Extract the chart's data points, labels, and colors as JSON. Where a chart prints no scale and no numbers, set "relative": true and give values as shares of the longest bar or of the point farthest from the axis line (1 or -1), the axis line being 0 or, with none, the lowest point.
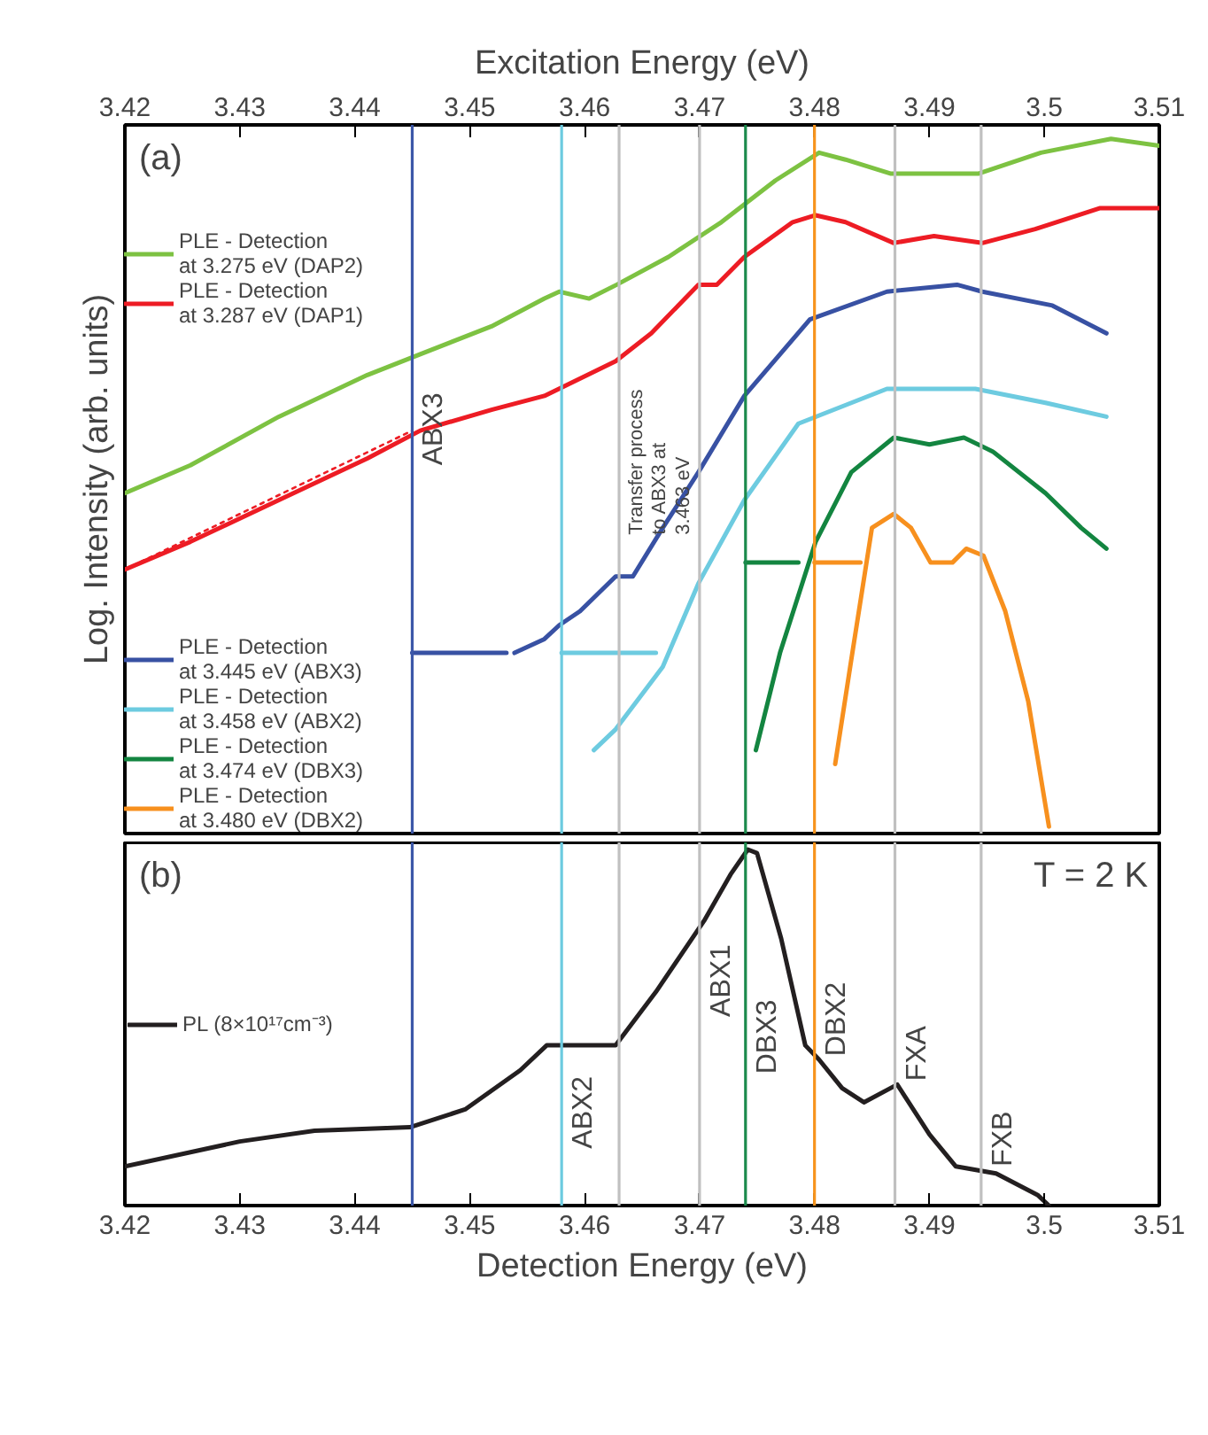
{
  "chart_data": [
    {
      "type": "line",
      "relative": true,
      "xlim": [
        3.42,
        3.51
      ],
      "x2lim": [
        3.42,
        3.51
      ],
      "x2ticks": [
        3.42,
        3.43,
        3.44,
        3.45,
        3.46,
        3.47,
        3.48,
        3.49,
        3.5,
        3.51
      ],
      "x2label": "Excitation Energy (eV)",
      "ylabel": "Log. Intensity (arb. units)",
      "tick_labels": false,
      "legend": "left",
      "line_style": "solid",
      "series": [
        {
          "name": "PLE - Detection\nat 3.275 eV (DAP2)",
          "color": "#7dc242",
          "x": [
            3.42,
            3.4257,
            3.4334,
            3.4411,
            3.4457,
            3.4519,
            3.4565,
            3.4578,
            3.4604,
            3.4628,
            3.4673,
            3.4719,
            3.4766,
            3.4804,
            3.4827,
            3.4866,
            3.4904,
            3.4943,
            3.4997,
            3.5058,
            3.51
          ],
          "values": [
            0.49,
            0.53,
            0.6,
            0.66,
            0.69,
            0.73,
            0.77,
            0.78,
            0.77,
            0.79,
            0.83,
            0.88,
            0.94,
            0.98,
            0.97,
            0.95,
            0.95,
            0.95,
            0.98,
            1.0,
            0.99
          ]
        },
        {
          "name": "PLE - Detection\nat 3.287 eV (DAP1)",
          "color": "#ed1c24",
          "x": [
            3.42,
            3.4257,
            3.4334,
            3.4411,
            3.4457,
            3.4519,
            3.4565,
            3.4627,
            3.4658,
            3.4699,
            3.4715,
            3.4739,
            3.4781,
            3.4801,
            3.4827,
            3.4869,
            3.4904,
            3.4946,
            3.4992,
            3.5048,
            3.51
          ],
          "values": [
            0.38,
            0.42,
            0.48,
            0.54,
            0.58,
            0.61,
            0.63,
            0.68,
            0.72,
            0.79,
            0.79,
            0.83,
            0.88,
            0.89,
            0.88,
            0.85,
            0.86,
            0.85,
            0.87,
            0.9,
            0.9
          ]
        },
        {
          "color": "#ed1c24",
          "line_style": "dotted",
          "x": [
            3.42,
            3.445
          ],
          "values": [
            0.38,
            0.58
          ]
        },
        {
          "name": "PLE - Detection\nat 3.445 eV (ABX3)",
          "color": "#3851a3",
          "x": [
            3.4539,
            3.4565,
            3.4578,
            3.4596,
            3.4627,
            3.4642,
            3.4668,
            3.4699,
            3.4739,
            3.4796,
            3.4863,
            3.4924,
            3.4946,
            3.5007,
            3.5054
          ],
          "values": [
            0.26,
            0.28,
            0.3,
            0.32,
            0.37,
            0.37,
            0.44,
            0.52,
            0.63,
            0.74,
            0.78,
            0.79,
            0.78,
            0.76,
            0.72
          ]
        },
        {
          "name": "PLE - Detection\nat 3.458 eV (ABX2)",
          "color": "#6dcbe0",
          "x": [
            3.4608,
            3.4627,
            3.4668,
            3.4699,
            3.4739,
            3.4786,
            3.4863,
            3.494,
            3.5001,
            3.5054
          ],
          "values": [
            0.12,
            0.15,
            0.24,
            0.36,
            0.48,
            0.59,
            0.64,
            0.64,
            0.62,
            0.6
          ]
        },
        {
          "name": "PLE - Detection\nat 3.474 eV (DBX3)",
          "color": "#138540",
          "x": [
            3.4749,
            3.477,
            3.4801,
            3.4832,
            3.4869,
            3.49,
            3.493,
            3.4955,
            3.5001,
            3.5032,
            3.5054
          ],
          "values": [
            0.12,
            0.26,
            0.42,
            0.52,
            0.57,
            0.56,
            0.57,
            0.55,
            0.49,
            0.44,
            0.41
          ]
        },
        {
          "name": "PLE - Detection\nat 3.480 eV (DBX2)",
          "color": "#f7901e",
          "x": [
            3.4818,
            3.4832,
            3.485,
            3.4869,
            3.4884,
            3.4901,
            3.492,
            3.4932,
            3.4947,
            3.4966,
            3.4986,
            3.5004
          ],
          "values": [
            0.1,
            0.25,
            0.44,
            0.46,
            0.44,
            0.39,
            0.39,
            0.41,
            0.4,
            0.32,
            0.19,
            0.01
          ]
        },
        {
          "color": "#3851a3",
          "x": [
            3.445,
            3.4532
          ],
          "values": [
            0.26,
            0.26
          ]
        },
        {
          "color": "#6dcbe0",
          "x": [
            3.458,
            3.4662
          ],
          "values": [
            0.26,
            0.26
          ]
        },
        {
          "color": "#138540",
          "x": [
            3.474,
            3.4786
          ],
          "values": [
            0.39,
            0.39
          ]
        },
        {
          "color": "#f7901e",
          "x": [
            3.48,
            3.484
          ],
          "values": [
            0.39,
            0.39
          ]
        }
      ],
      "ref_lines": [
        {
          "axis": "x",
          "value": 3.445,
          "color": "#3c57a8"
        },
        {
          "axis": "x",
          "value": 3.458,
          "color": "#6ccbe0"
        },
        {
          "axis": "x",
          "value": 3.463,
          "color": "#c0c0c0"
        },
        {
          "axis": "x",
          "value": 3.47,
          "color": "#c0c0c0"
        },
        {
          "axis": "x",
          "value": 3.474,
          "color": "#1b8a4c"
        },
        {
          "axis": "x",
          "value": 3.48,
          "color": "#f7941d"
        },
        {
          "axis": "x",
          "value": 3.487,
          "color": "#c0c0c0"
        },
        {
          "axis": "x",
          "value": 3.4945,
          "color": "#c0c0c0"
        }
      ],
      "annotations": [
        "(a)",
        {
          "text": "ABX3",
          "x": 3.445,
          "y": 0.53
        },
        {
          "text": "Transfer process\nto ABX3 at\n3.463 eV",
          "x": 3.463,
          "y": 0.43
        }
      ]
    },
    {
      "type": "line",
      "relative": true,
      "xlim": [
        3.42,
        3.51
      ],
      "xticks": [
        3.42,
        3.43,
        3.44,
        3.45,
        3.46,
        3.47,
        3.48,
        3.49,
        3.5,
        3.51
      ],
      "xlabel": "Detection Energy (eV)",
      "tick_labels": "x",
      "legend": "left",
      "line_style": "solid",
      "series": [
        {
          "name": "PL (8×10¹⁷cm⁻³)",
          "color": "#231f20",
          "x": [
            3.42,
            3.43,
            3.4365,
            3.4448,
            3.4496,
            3.4544,
            3.4567,
            3.4602,
            3.4627,
            3.4662,
            3.4704,
            3.4727,
            3.4742,
            3.475,
            3.4771,
            3.4792,
            3.4804,
            3.4824,
            3.4843,
            3.4872,
            3.49,
            3.4923,
            3.4958,
            3.4994,
            3.5004
          ],
          "values": [
            0.11,
            0.18,
            0.21,
            0.22,
            0.27,
            0.38,
            0.45,
            0.45,
            0.45,
            0.6,
            0.8,
            0.93,
            1.0,
            0.99,
            0.75,
            0.45,
            0.41,
            0.33,
            0.29,
            0.34,
            0.2,
            0.11,
            0.09,
            0.03,
            0.0
          ]
        }
      ],
      "ref_lines": [
        {
          "axis": "x",
          "value": 3.445,
          "color": "#3c57a8"
        },
        {
          "axis": "x",
          "value": 3.458,
          "color": "#6ccbe0"
        },
        {
          "axis": "x",
          "value": 3.463,
          "color": "#c0c0c0"
        },
        {
          "axis": "x",
          "value": 3.47,
          "color": "#c0c0c0"
        },
        {
          "axis": "x",
          "value": 3.474,
          "color": "#1b8a4c"
        },
        {
          "axis": "x",
          "value": 3.48,
          "color": "#f7941d"
        },
        {
          "axis": "x",
          "value": 3.487,
          "color": "#c0c0c0"
        },
        {
          "axis": "x",
          "value": 3.4945,
          "color": "#c0c0c0"
        }
      ],
      "annotations": [
        "(b)",
        "T = 2 K",
        {
          "text": "ABX2",
          "x": 3.458,
          "y": 0.16
        },
        {
          "text": "ABX1",
          "x": 3.47,
          "y": 0.53
        },
        {
          "text": "DBX3",
          "x": 3.474,
          "y": 0.37
        },
        {
          "text": "DBX2",
          "x": 3.48,
          "y": 0.42
        },
        {
          "text": "FXA",
          "x": 3.487,
          "y": 0.35
        },
        {
          "text": "FXB",
          "x": 3.4945,
          "y": 0.11
        }
      ]
    }
  ]
}
